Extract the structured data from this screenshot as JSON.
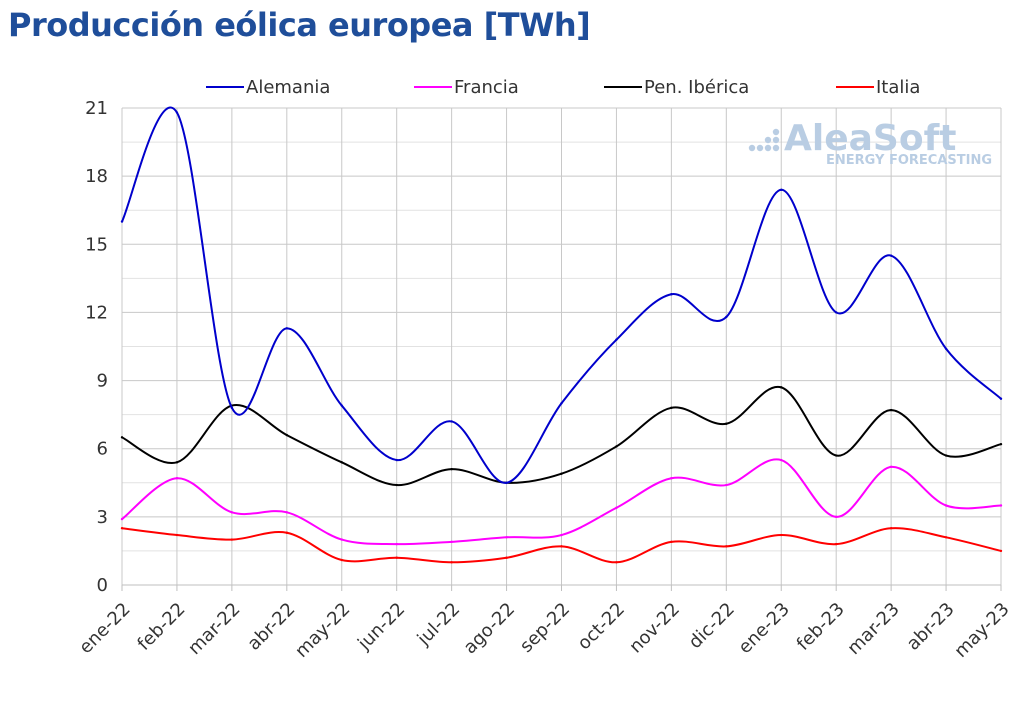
{
  "title": "Producción eólica europea [TWh]",
  "watermark": {
    "name": "AleaSoft",
    "tagline": "ENERGY FORECASTING"
  },
  "chart_data": {
    "type": "line",
    "title": "Producción eólica europea [TWh]",
    "xlabel": "",
    "ylabel": "",
    "categories": [
      "ene-22",
      "feb-22",
      "mar-22",
      "abr-22",
      "may-22",
      "jun-22",
      "jul-22",
      "ago-22",
      "sep-22",
      "oct-22",
      "nov-22",
      "dic-22",
      "ene-23",
      "feb-23",
      "mar-23",
      "abr-23",
      "may-23"
    ],
    "ylim": [
      0,
      21
    ],
    "yticks": [
      0,
      3,
      6,
      9,
      12,
      15,
      18,
      21
    ],
    "grid": true,
    "legend_position": "top",
    "series": [
      {
        "name": "Alemania",
        "color": "#0000cc",
        "values": [
          16.0,
          20.8,
          7.8,
          11.3,
          7.9,
          5.5,
          7.2,
          4.5,
          8.0,
          10.8,
          12.8,
          11.8,
          17.4,
          12.0,
          14.5,
          10.4,
          8.2
        ]
      },
      {
        "name": "Francia",
        "color": "#ff00ff",
        "values": [
          2.9,
          4.7,
          3.2,
          3.2,
          2.0,
          1.8,
          1.9,
          2.1,
          2.2,
          3.4,
          4.7,
          4.4,
          5.5,
          3.0,
          5.2,
          3.5,
          3.5
        ]
      },
      {
        "name": "Pen. Ibérica",
        "color": "#000000",
        "values": [
          6.5,
          5.4,
          7.9,
          6.6,
          5.4,
          4.4,
          5.1,
          4.5,
          4.9,
          6.1,
          7.8,
          7.1,
          8.7,
          5.7,
          7.7,
          5.7,
          6.2
        ]
      },
      {
        "name": "Italia",
        "color": "#ff0000",
        "values": [
          2.5,
          2.2,
          2.0,
          2.3,
          1.1,
          1.2,
          1.0,
          1.2,
          1.7,
          1.0,
          1.9,
          1.7,
          2.2,
          1.8,
          2.5,
          2.1,
          1.5
        ]
      }
    ]
  }
}
